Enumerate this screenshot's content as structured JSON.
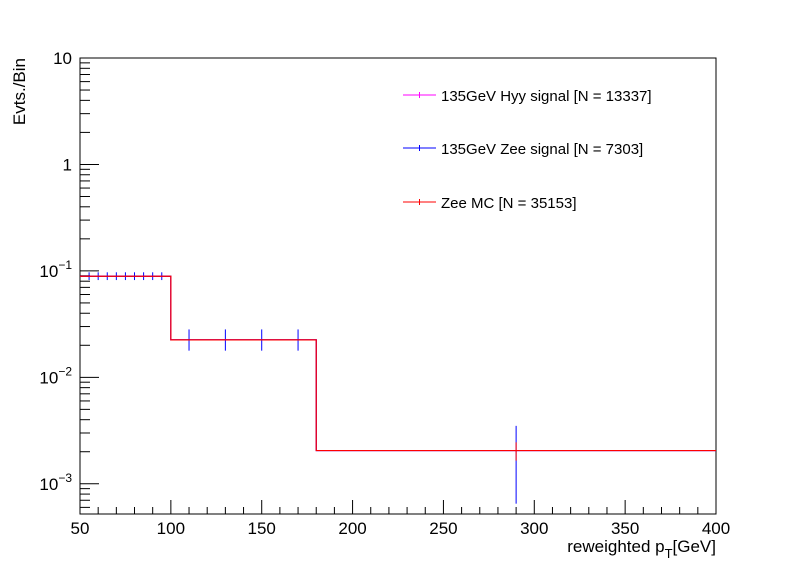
{
  "chart_data": {
    "type": "histogram",
    "xlabel": {
      "main": "reweighted p",
      "sub": "T",
      "unit": "[GeV]"
    },
    "ylabel": "Evts./Bin",
    "xlim": [
      50,
      400
    ],
    "ylim": [
      0.00052,
      10
    ],
    "yscale": "log",
    "grid": false,
    "legend_position": "top-right",
    "x_tick_labels": [
      "50",
      "100",
      "150",
      "200",
      "250",
      "300",
      "350",
      "400"
    ],
    "x_tick_values": [
      50,
      100,
      150,
      200,
      250,
      300,
      350,
      400
    ],
    "y_tick_labels": [
      {
        "value": 10,
        "base": "10",
        "exp": ""
      },
      {
        "value": 1,
        "base": "1",
        "exp": ""
      },
      {
        "value": 0.1,
        "base": "10",
        "exp": "−1"
      },
      {
        "value": 0.01,
        "base": "10",
        "exp": "−2"
      },
      {
        "value": 0.001,
        "base": "10",
        "exp": "−3"
      }
    ],
    "bin_edges": [
      50,
      100,
      180,
      400
    ],
    "series": [
      {
        "name": "135GeV Hyy signal [N = 13337]",
        "color": "#ff00ff",
        "values": [
          0.089,
          0.0225,
          0.00205
        ]
      },
      {
        "name": "135GeV Zee signal [N = 7303]",
        "color": "#0000ff",
        "values": [
          0.089,
          0.0225,
          0.00205
        ],
        "errorbars": [
          {
            "x": 55,
            "y": 0.089,
            "ylo": 0.082,
            "yhi": 0.097
          },
          {
            "x": 60,
            "y": 0.089,
            "ylo": 0.082,
            "yhi": 0.097
          },
          {
            "x": 65,
            "y": 0.089,
            "ylo": 0.082,
            "yhi": 0.097
          },
          {
            "x": 70,
            "y": 0.089,
            "ylo": 0.082,
            "yhi": 0.097
          },
          {
            "x": 75,
            "y": 0.089,
            "ylo": 0.082,
            "yhi": 0.097
          },
          {
            "x": 80,
            "y": 0.089,
            "ylo": 0.082,
            "yhi": 0.097
          },
          {
            "x": 85,
            "y": 0.089,
            "ylo": 0.082,
            "yhi": 0.097
          },
          {
            "x": 90,
            "y": 0.089,
            "ylo": 0.082,
            "yhi": 0.097
          },
          {
            "x": 95,
            "y": 0.089,
            "ylo": 0.082,
            "yhi": 0.097
          },
          {
            "x": 110,
            "y": 0.0225,
            "ylo": 0.0178,
            "yhi": 0.0282
          },
          {
            "x": 130,
            "y": 0.0225,
            "ylo": 0.0178,
            "yhi": 0.0282
          },
          {
            "x": 150,
            "y": 0.0225,
            "ylo": 0.0178,
            "yhi": 0.0282
          },
          {
            "x": 170,
            "y": 0.0225,
            "ylo": 0.0178,
            "yhi": 0.0282
          },
          {
            "x": 290,
            "y": 0.00205,
            "ylo": 0.00065,
            "yhi": 0.0035
          }
        ]
      },
      {
        "name": "Zee MC [N = 35153]",
        "color": "#ff0000",
        "values": [
          0.089,
          0.0225,
          0.00205
        ],
        "errorbars": [
          {
            "x": 290,
            "y": 0.00205,
            "ylo": 0.00165,
            "yhi": 0.00245
          }
        ]
      }
    ]
  }
}
